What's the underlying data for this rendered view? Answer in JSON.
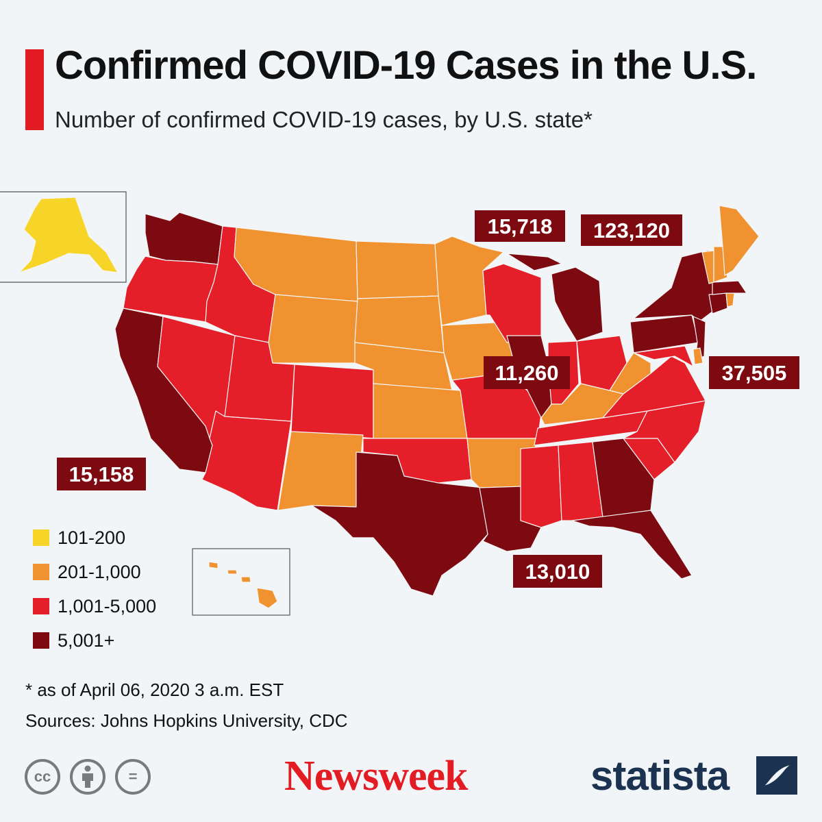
{
  "header": {
    "title": "Confirmed COVID-19 Cases in the U.S.",
    "subtitle": "Number of confirmed COVID-19 cases, by U.S. state*"
  },
  "colors": {
    "accent": "#e31c24",
    "tier_101_200": "#f7d528",
    "tier_201_1000": "#f0922f",
    "tier_1001_5000": "#e41f29",
    "tier_5001_plus": "#7c0a10",
    "label_bg": "#7c0a10",
    "background": "#f2f5f8"
  },
  "legend": [
    {
      "label": "101-200",
      "color": "#f7d528"
    },
    {
      "label": "201-1,000",
      "color": "#f0922f"
    },
    {
      "label": "1,001-5,000",
      "color": "#e41f29"
    },
    {
      "label": "5,001+",
      "color": "#7c0a10"
    }
  ],
  "map_data": {
    "tiers": {
      "AK": "101-200",
      "HI": "201-1,000",
      "WA": "5,001+",
      "OR": "1,001-5,000",
      "CA": "5,001+",
      "NV": "1,001-5,000",
      "ID": "1,001-5,000",
      "UT": "1,001-5,000",
      "AZ": "1,001-5,000",
      "MT": "201-1,000",
      "WY": "201-1,000",
      "CO": "1,001-5,000",
      "NM": "201-1,000",
      "ND": "201-1,000",
      "SD": "201-1,000",
      "NE": "201-1,000",
      "KS": "201-1,000",
      "OK": "1,001-5,000",
      "TX": "5,001+",
      "MN": "201-1,000",
      "IA": "201-1,000",
      "MO": "1,001-5,000",
      "AR": "201-1,000",
      "LA": "5,001+",
      "WI": "1,001-5,000",
      "IL": "5,001+",
      "MI": "5,001+",
      "IN": "1,001-5,000",
      "OH": "1,001-5,000",
      "KY": "201-1,000",
      "TN": "1,001-5,000",
      "MS": "1,001-5,000",
      "AL": "1,001-5,000",
      "GA": "5,001+",
      "FL": "5,001+",
      "SC": "1,001-5,000",
      "NC": "1,001-5,000",
      "VA": "1,001-5,000",
      "WV": "201-1,000",
      "PA": "5,001+",
      "NY": "5,001+",
      "NJ": "5,001+",
      "MD": "1,001-5,000",
      "DE": "201-1,000",
      "CT": "5,001+",
      "MA": "5,001+",
      "RI": "201-1,000",
      "VT": "201-1,000",
      "NH": "201-1,000",
      "ME": "201-1,000"
    },
    "callouts": [
      {
        "state": "MI",
        "value": "15,718"
      },
      {
        "state": "NY",
        "value": "123,120"
      },
      {
        "state": "IL",
        "value": "11,260"
      },
      {
        "state": "NJ",
        "value": "37,505"
      },
      {
        "state": "CA",
        "value": "15,158"
      },
      {
        "state": "LA",
        "value": "13,010"
      }
    ]
  },
  "footer": {
    "note": "* as of April 06, 2020 3 a.m. EST",
    "sources": "Sources: Johns Hopkins University, CDC",
    "cc_icons": [
      "cc-icon",
      "attribution-icon",
      "no-derivatives-icon"
    ],
    "cc_glyphs": [
      "cc",
      "",
      "="
    ],
    "brand_newsweek": "Newsweek",
    "brand_statista": "statista"
  }
}
